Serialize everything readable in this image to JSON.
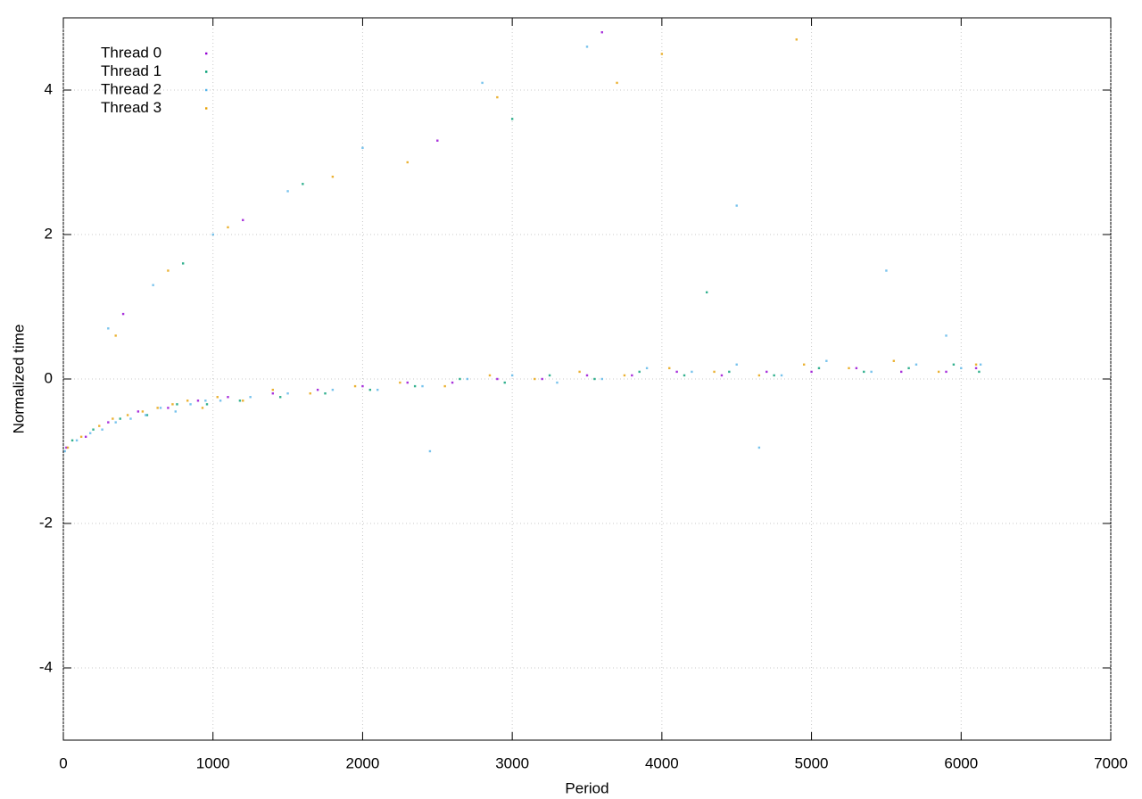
{
  "chart_data": {
    "type": "scatter",
    "x_label": "Period",
    "y_label": "Normalized time",
    "xlim": [
      0,
      7000
    ],
    "xticks": [
      0,
      1000,
      2000,
      3000,
      4000,
      5000,
      6000,
      7000
    ],
    "ylim": [
      -5,
      5
    ],
    "yticks": [
      -4,
      -2,
      0,
      2,
      4
    ],
    "grid": true,
    "legend": "top-left",
    "series": [
      {
        "name": "Thread 0",
        "color": "#9400d3",
        "x": [
          20,
          150,
          300,
          500,
          700,
          900,
          1100,
          1400,
          1700,
          2000,
          2300,
          2600,
          2900,
          3200,
          3500,
          3800,
          4100,
          4400,
          4700,
          5000,
          5300,
          5600,
          5900,
          6100,
          400,
          1200,
          2500,
          3600
        ],
        "values": [
          -0.95,
          -0.8,
          -0.6,
          -0.45,
          -0.4,
          -0.3,
          -0.25,
          -0.2,
          -0.15,
          -0.1,
          -0.05,
          -0.05,
          0,
          0,
          0.05,
          0.05,
          0.1,
          0.05,
          0.1,
          0.1,
          0.15,
          0.1,
          0.1,
          0.15,
          0.9,
          2.2,
          3.3,
          4.8
        ]
      },
      {
        "name": "Thread 1",
        "color": "#009e73",
        "x": [
          60,
          200,
          380,
          560,
          760,
          960,
          1180,
          1450,
          1750,
          2050,
          2350,
          2650,
          2950,
          3250,
          3550,
          3850,
          4150,
          4450,
          4750,
          5050,
          5350,
          5650,
          5950,
          6120,
          800,
          1600,
          3000,
          4300
        ],
        "values": [
          -0.85,
          -0.7,
          -0.55,
          -0.5,
          -0.35,
          -0.35,
          -0.3,
          -0.25,
          -0.2,
          -0.15,
          -0.1,
          0,
          -0.05,
          0.05,
          0,
          0.1,
          0.05,
          0.1,
          0.05,
          0.15,
          0.1,
          0.15,
          0.2,
          0.1,
          1.6,
          2.7,
          3.6,
          1.2
        ]
      },
      {
        "name": "Thread 2",
        "color": "#56b4e9",
        "x": [
          10,
          90,
          180,
          260,
          350,
          450,
          550,
          650,
          750,
          850,
          950,
          1050,
          1250,
          1500,
          1800,
          2100,
          2400,
          2700,
          3000,
          3300,
          3600,
          3900,
          4200,
          4500,
          4800,
          5100,
          5400,
          5700,
          6000,
          6130,
          300,
          600,
          1000,
          1500,
          2000,
          2800,
          3500,
          4500,
          5500,
          5900,
          2450,
          4650
        ],
        "values": [
          -1.0,
          -0.85,
          -0.75,
          -0.7,
          -0.6,
          -0.55,
          -0.5,
          -0.4,
          -0.45,
          -0.35,
          -0.3,
          -0.3,
          -0.25,
          -0.2,
          -0.15,
          -0.15,
          -0.1,
          0,
          0.05,
          -0.05,
          0,
          0.15,
          0.1,
          0.2,
          0.05,
          0.25,
          0.1,
          0.2,
          0.15,
          0.2,
          0.7,
          1.3,
          2.0,
          2.6,
          3.2,
          4.1,
          4.6,
          2.4,
          1.5,
          0.6,
          -1.0,
          -0.95
        ]
      },
      {
        "name": "Thread 3",
        "color": "#e69f00",
        "x": [
          30,
          120,
          240,
          330,
          430,
          530,
          630,
          730,
          830,
          930,
          1030,
          1200,
          1400,
          1650,
          1950,
          2250,
          2550,
          2850,
          3150,
          3450,
          3750,
          4050,
          4350,
          4650,
          4950,
          5250,
          5550,
          5850,
          6100,
          350,
          700,
          1100,
          1800,
          2300,
          2900,
          3700,
          4000,
          4900
        ],
        "values": [
          -0.95,
          -0.8,
          -0.65,
          -0.55,
          -0.5,
          -0.45,
          -0.4,
          -0.35,
          -0.3,
          -0.4,
          -0.25,
          -0.3,
          -0.15,
          -0.2,
          -0.1,
          -0.05,
          -0.1,
          0.05,
          0,
          0.1,
          0.05,
          0.15,
          0.1,
          0.05,
          0.2,
          0.15,
          0.25,
          0.1,
          0.2,
          0.6,
          1.5,
          2.1,
          2.8,
          3.0,
          3.9,
          4.1,
          4.5,
          4.7
        ]
      }
    ]
  }
}
